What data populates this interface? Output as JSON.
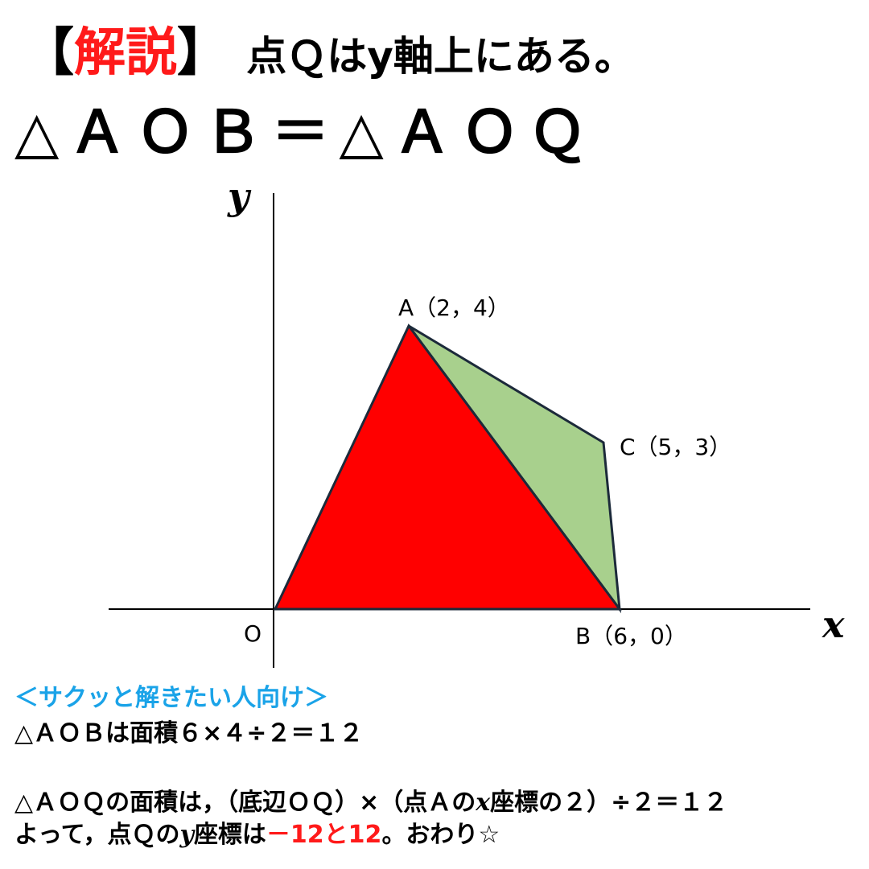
{
  "header": {
    "bracket_open": "【",
    "label": "解説",
    "bracket_close": "】",
    "text": "点Ｑはy軸上にある。"
  },
  "equation": "△ＡＯＢ＝△ＡＯＱ",
  "diagram": {
    "y_axis_label": "y",
    "x_axis_label": "x",
    "points": {
      "O": "O",
      "A": "A（2，4）",
      "C": "C（5，3）",
      "B": "B（6，0）"
    }
  },
  "explanation": {
    "heading": "＜サクッと解きたい人向け＞",
    "line1": "△ＡＯＢは面積６×４÷２＝１２",
    "line2": [
      "△ＡＯＱの面積は，（底辺ＯＱ）×（点Ａの",
      "x",
      "座標の２）÷２＝１２"
    ],
    "line3": [
      "よって，点Ｑの",
      "y",
      "座標は",
      "－12と12",
      "。おわり☆"
    ]
  }
}
